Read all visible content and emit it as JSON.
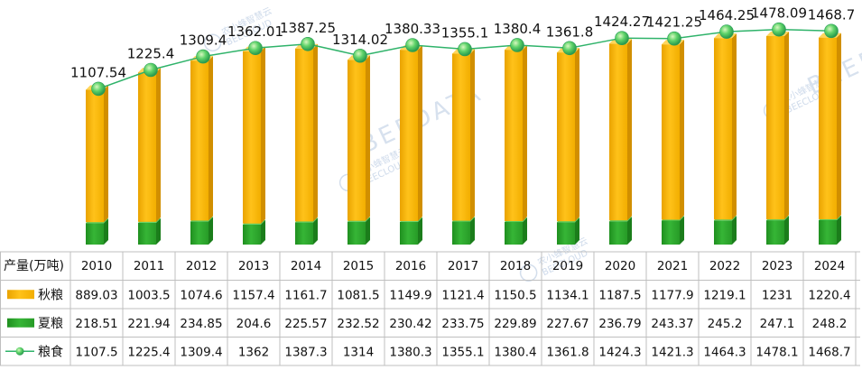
{
  "chart_data": {
    "type": "bar",
    "stacked": true,
    "unit_header": "产量(万吨)",
    "categories": [
      "2010",
      "2011",
      "2012",
      "2013",
      "2014",
      "2015",
      "2016",
      "2017",
      "2018",
      "2019",
      "2020",
      "2021",
      "2022",
      "2023",
      "2024"
    ],
    "series": [
      {
        "name": "秋粮",
        "kind": "bar",
        "color": "#f5b400",
        "values": [
          889.03,
          1003.5,
          1074.6,
          1157.4,
          1161.7,
          1081.5,
          1149.9,
          1121.4,
          1150.5,
          1134.1,
          1187.5,
          1177.9,
          1219.1,
          1231,
          1220.4
        ],
        "table_values": [
          "889.03",
          "1003.5",
          "1074.6",
          "1157.4",
          "1161.7",
          "1081.5",
          "1149.9",
          "1121.4",
          "1150.5",
          "1134.1",
          "1187.5",
          "1177.9",
          "1219.1",
          "1231",
          "1220.4"
        ]
      },
      {
        "name": "夏粮",
        "kind": "bar",
        "color": "#2aa52a",
        "values": [
          218.51,
          221.94,
          234.85,
          204.6,
          225.57,
          232.52,
          230.42,
          233.75,
          229.89,
          227.67,
          236.79,
          243.37,
          245.2,
          247.1,
          248.2
        ],
        "table_values": [
          "218.51",
          "221.94",
          "234.85",
          "204.6",
          "225.57",
          "232.52",
          "230.42",
          "233.75",
          "229.89",
          "227.67",
          "236.79",
          "243.37",
          "245.2",
          "247.1",
          "248.2"
        ]
      },
      {
        "name": "粮食",
        "kind": "line",
        "color": "#2fb36a",
        "values": [
          1107.54,
          1225.4,
          1309.4,
          1362.01,
          1387.25,
          1314.02,
          1380.33,
          1355.1,
          1380.4,
          1361.8,
          1424.27,
          1421.25,
          1464.25,
          1478.09,
          1468.7
        ],
        "labels": [
          "1107.54",
          "1225.4",
          "1309.4",
          "1362.01",
          "1387.25",
          "1314.02",
          "1380.33",
          "1355.1",
          "1380.4",
          "1361.8",
          "1424.27",
          "1421.25",
          "1464.25",
          "1478.09",
          "1468.7"
        ],
        "table_values": [
          "1107.5",
          "1225.4",
          "1309.4",
          "1362",
          "1387.3",
          "1314",
          "1380.3",
          "1355.1",
          "1380.4",
          "1361.8",
          "1424.3",
          "1421.3",
          "1464.3",
          "1478.1",
          "1468.7"
        ]
      }
    ],
    "legend": "data-table",
    "grid": false
  },
  "watermarks": [
    "农小蜂智慧云",
    "BEECLOUD",
    "BEEDATA"
  ]
}
